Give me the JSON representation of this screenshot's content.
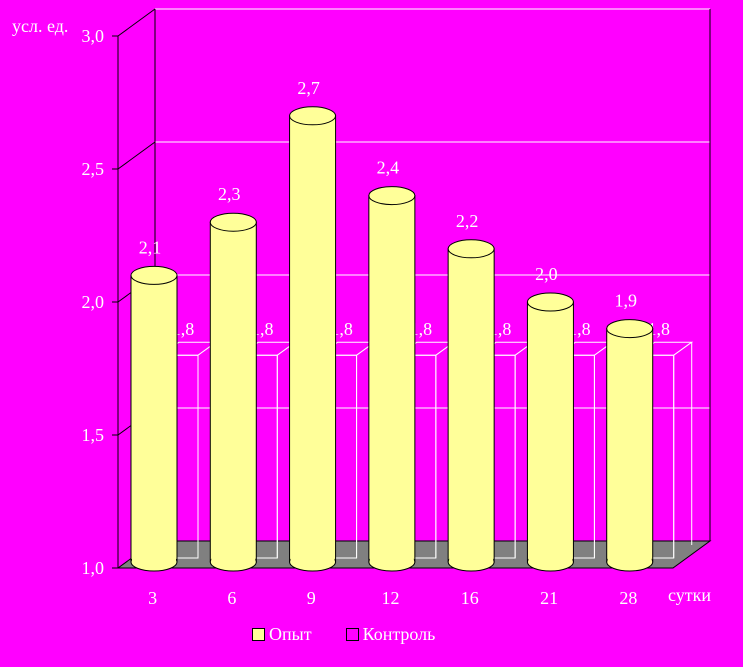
{
  "chart_data": {
    "type": "bar",
    "categories": [
      "3",
      "6",
      "9",
      "12",
      "16",
      "21",
      "28"
    ],
    "series": [
      {
        "name": "Опыт",
        "values": [
          2.1,
          2.3,
          2.7,
          2.4,
          2.2,
          2.0,
          1.9
        ],
        "labels": [
          "2,1",
          "2,3",
          "2,7",
          "2,4",
          "2,2",
          "2,0",
          "1,9"
        ],
        "color": "#ffff99"
      },
      {
        "name": "Контроль",
        "values": [
          1.8,
          1.8,
          1.8,
          1.8,
          1.8,
          1.8,
          1.8
        ],
        "labels": [
          "1,8",
          "1,8",
          "1,8",
          "1,8",
          "1,8",
          "1,8",
          "1,8"
        ],
        "color": "#ff00ff"
      }
    ],
    "y_ticks": [
      "1,0",
      "1,5",
      "2,0",
      "2,5",
      "3,0"
    ],
    "ylim": [
      1.0,
      3.0
    ],
    "ylabel": "усл. ед.",
    "xlabel": "сутки",
    "legend_position": "bottom",
    "grid": true,
    "background": "#ff00ff"
  }
}
